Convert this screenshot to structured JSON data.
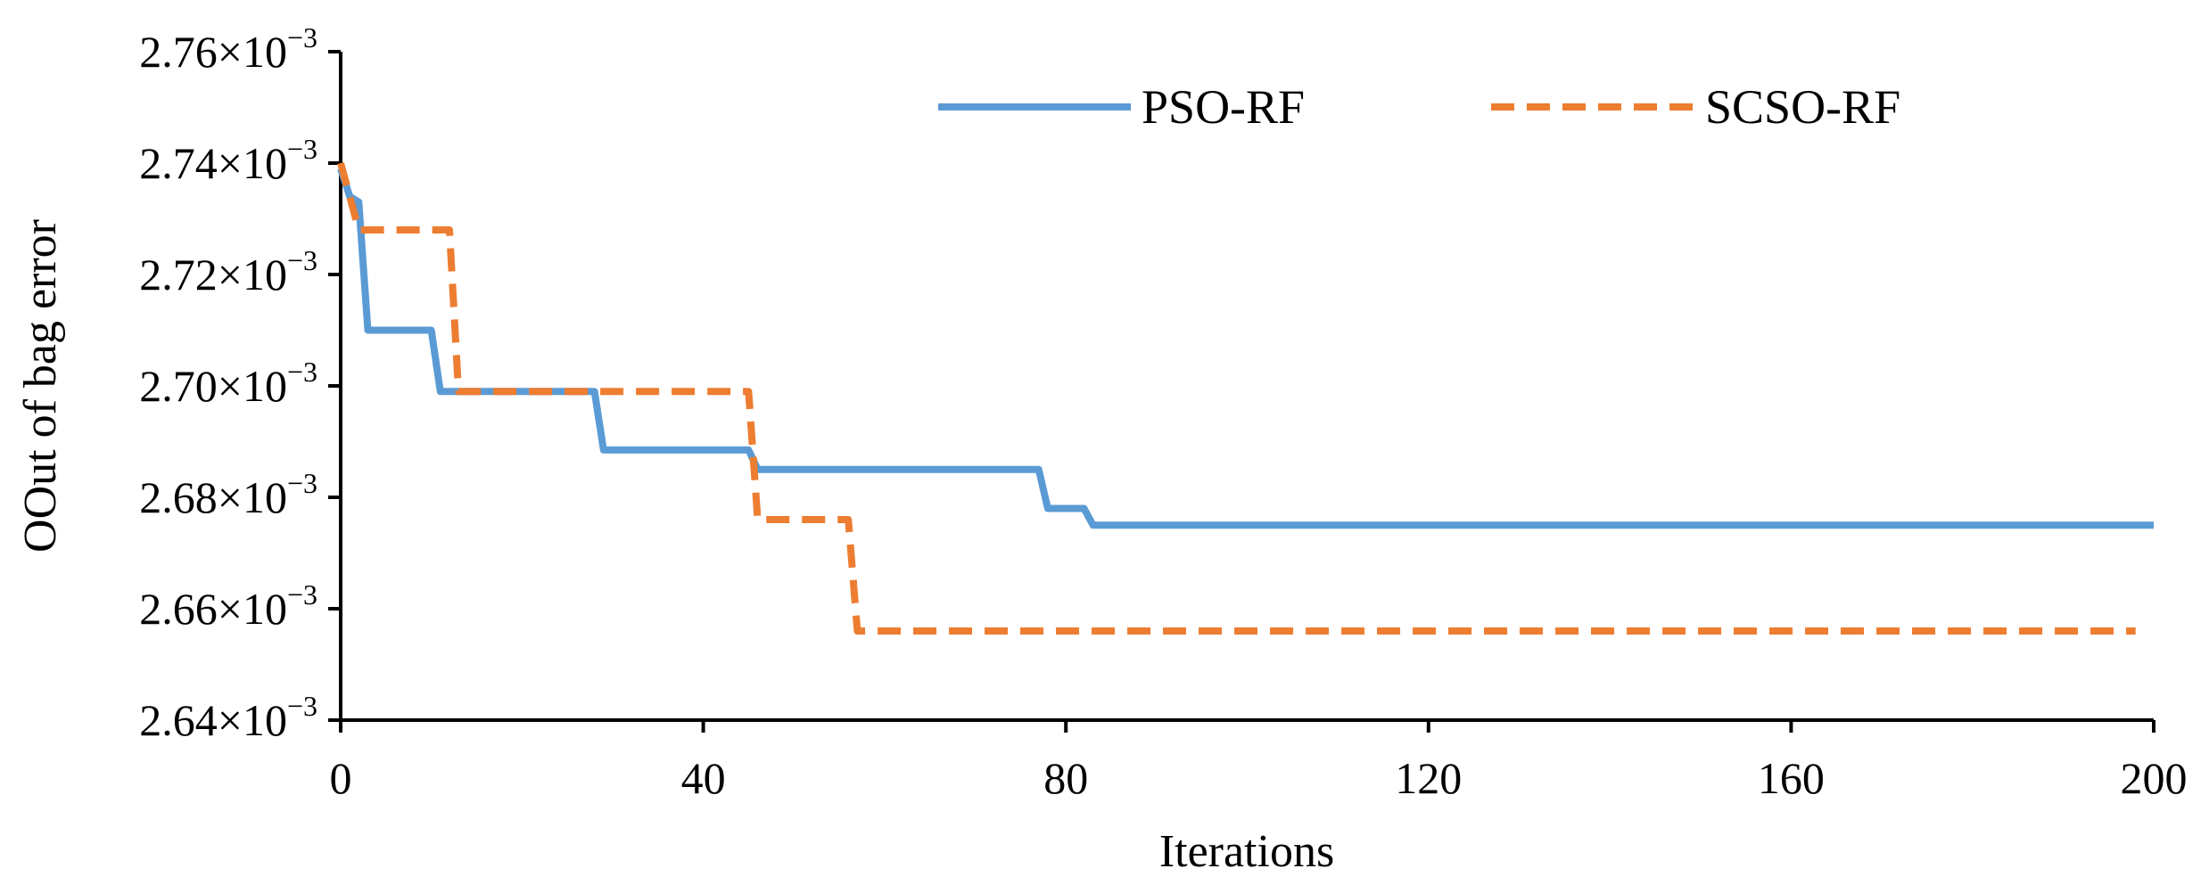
{
  "chart_data": {
    "type": "line",
    "title": "",
    "xlabel": "Iterations",
    "ylabel": "OOut of bag error",
    "xlim": [
      0,
      200
    ],
    "ylim": [
      2.64,
      2.76
    ],
    "y_scale_note": "×10⁻³",
    "grid": false,
    "legend_position": "top-right",
    "x_ticks": [
      0,
      40,
      80,
      120,
      160,
      200
    ],
    "x_tick_labels": [
      "0",
      "40",
      "80",
      "120",
      "160",
      "200"
    ],
    "y_ticks": [
      2.64,
      2.66,
      2.68,
      2.7,
      2.72,
      2.74,
      2.76
    ],
    "y_tick_mantissas": [
      "2.64",
      "2.66",
      "2.68",
      "2.70",
      "2.72",
      "2.74",
      "2.76"
    ],
    "y_tick_base": "×10",
    "y_tick_exponent": "−3",
    "series": [
      {
        "name": "PSO-RF",
        "color": "#5B9BD5",
        "style": "solid",
        "points": [
          [
            0,
            2.739
          ],
          [
            1,
            2.734
          ],
          [
            2,
            2.733
          ],
          [
            3,
            2.71
          ],
          [
            10,
            2.71
          ],
          [
            11,
            2.699
          ],
          [
            28,
            2.699
          ],
          [
            29,
            2.6885
          ],
          [
            45,
            2.6885
          ],
          [
            46,
            2.685
          ],
          [
            77,
            2.685
          ],
          [
            78,
            2.678
          ],
          [
            82,
            2.678
          ],
          [
            83,
            2.675
          ],
          [
            200,
            2.675
          ]
        ]
      },
      {
        "name": "SCSO-RF",
        "color": "#ED7D31",
        "style": "dashed",
        "points": [
          [
            0,
            2.74
          ],
          [
            2,
            2.728
          ],
          [
            12,
            2.728
          ],
          [
            13,
            2.699
          ],
          [
            45,
            2.699
          ],
          [
            46,
            2.676
          ],
          [
            56,
            2.676
          ],
          [
            57,
            2.656
          ],
          [
            198,
            2.656
          ]
        ]
      }
    ]
  }
}
